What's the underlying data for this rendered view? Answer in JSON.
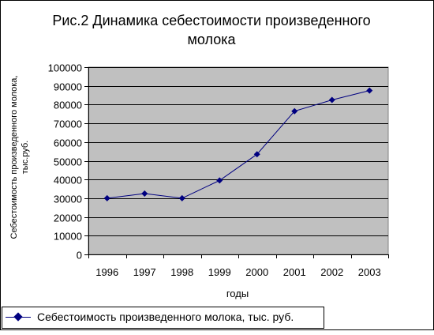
{
  "chart_data": {
    "type": "line",
    "title": [
      "Рис.2 Динамика себестоимости произведенного",
      "молока"
    ],
    "xlabel": "годы",
    "ylabel": [
      "Себестоимость произведенного молока,",
      "тыс.руб."
    ],
    "categories": [
      "1996",
      "1997",
      "1998",
      "1999",
      "2000",
      "2001",
      "2002",
      "2003"
    ],
    "series": [
      {
        "name": "Себестоимость произведенного молока, тыс. руб.",
        "values": [
          30000,
          32500,
          30000,
          39500,
          53500,
          76500,
          82500,
          87500
        ]
      }
    ],
    "ylim": [
      0,
      100000
    ],
    "yticks": [
      "0",
      "10000",
      "20000",
      "30000",
      "40000",
      "50000",
      "60000",
      "70000",
      "80000",
      "90000",
      "100000"
    ],
    "grid": true,
    "legend_position": "bottom",
    "colors": {
      "plot_background": "#c0c0c0",
      "line": "#000080",
      "grid": "#000000"
    }
  }
}
